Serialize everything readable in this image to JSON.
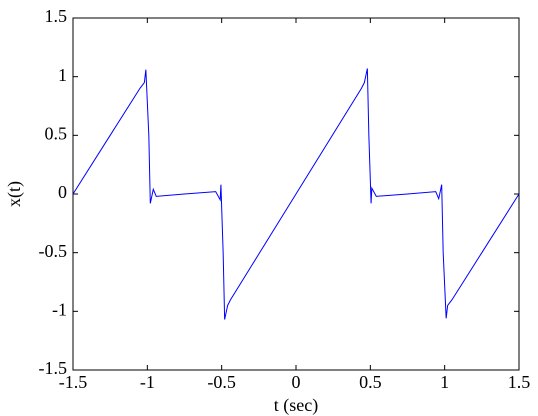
{
  "chart_data": {
    "type": "line",
    "x_label": "t (sec)",
    "y_label": "x(t)",
    "x": [
      -1.5,
      -1.25,
      -1.05,
      -1.02,
      -1.01,
      -0.99,
      -0.98,
      -0.96,
      -0.94,
      -0.75,
      -0.54,
      -0.51,
      -0.505,
      -0.49,
      -0.48,
      -0.46,
      -0.44,
      0,
      0.44,
      0.46,
      0.48,
      0.49,
      0.505,
      0.51,
      0.54,
      0.75,
      0.94,
      0.96,
      0.98,
      0.99,
      1.01,
      1.02,
      1.05,
      1.25,
      1.5
    ],
    "series": [
      {
        "color": "#0000ff",
        "values": [
          0,
          0.5,
          0.9,
          0.95,
          1.06,
          0.5,
          -0.08,
          0.04,
          -0.02,
          0,
          0.02,
          -0.05,
          0.08,
          -0.5,
          -1.07,
          -0.95,
          -0.9,
          0,
          0.9,
          0.95,
          1.07,
          0.5,
          -0.08,
          0.05,
          -0.02,
          0,
          0.02,
          -0.04,
          0.08,
          -0.5,
          -1.06,
          -0.95,
          -0.9,
          -0.5,
          0
        ]
      }
    ],
    "xlim": [
      -1.5,
      1.5
    ],
    "xticks": [
      -1.5,
      -1,
      -0.5,
      0,
      0.5,
      1,
      1.5
    ],
    "ylim": [
      -1.5,
      1.5
    ],
    "yticks": [
      -1.5,
      -1,
      -0.5,
      0,
      0.5,
      1,
      1.5
    ]
  }
}
